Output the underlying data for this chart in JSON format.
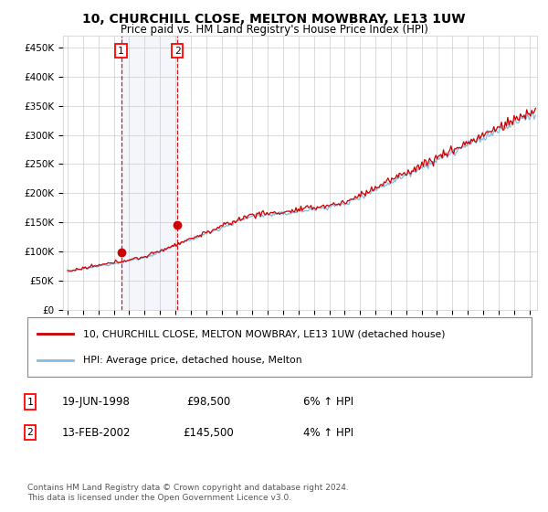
{
  "title": "10, CHURCHILL CLOSE, MELTON MOWBRAY, LE13 1UW",
  "subtitle": "Price paid vs. HM Land Registry's House Price Index (HPI)",
  "legend_label_red": "10, CHURCHILL CLOSE, MELTON MOWBRAY, LE13 1UW (detached house)",
  "legend_label_blue": "HPI: Average price, detached house, Melton",
  "transaction1_date": "19-JUN-1998",
  "transaction1_price": "£98,500",
  "transaction1_hpi": "6% ↑ HPI",
  "transaction2_date": "13-FEB-2002",
  "transaction2_price": "£145,500",
  "transaction2_hpi": "4% ↑ HPI",
  "footer": "Contains HM Land Registry data © Crown copyright and database right 2024.\nThis data is licensed under the Open Government Licence v3.0.",
  "ylim": [
    0,
    470000
  ],
  "yticks": [
    0,
    50000,
    100000,
    150000,
    200000,
    250000,
    300000,
    350000,
    400000,
    450000
  ],
  "yticklabels": [
    "£0",
    "£50K",
    "£100K",
    "£150K",
    "£200K",
    "£250K",
    "£300K",
    "£350K",
    "£400K",
    "£450K"
  ],
  "red_color": "#cc0000",
  "blue_color": "#88bbdd",
  "background_color": "#ffffff",
  "grid_color": "#cccccc",
  "transaction1_x": 1998.47,
  "transaction1_y": 98500,
  "transaction2_x": 2002.12,
  "transaction2_y": 145500,
  "xmin": 1994.7,
  "xmax": 2025.5
}
